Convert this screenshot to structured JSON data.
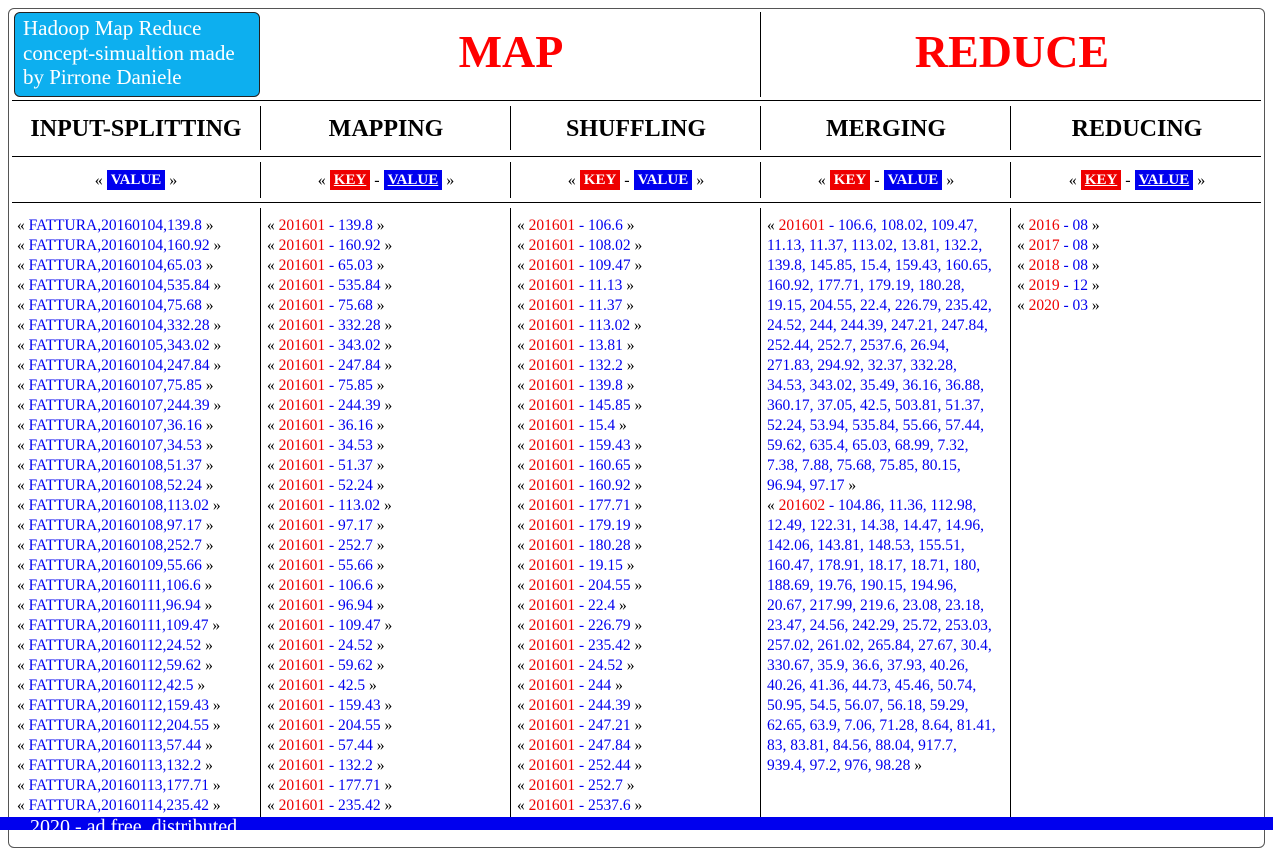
{
  "brand": "Hadoop Map Reduce concept-simualtion made by Pirrone Daniele",
  "titles": {
    "map": "MAP",
    "reduce": "REDUCE"
  },
  "columns": {
    "input": "INPUT-SPLITTING",
    "mapping": "MAPPING",
    "shuffling": "SHUFFLING",
    "merging": "MERGING",
    "reducing": "REDUCING"
  },
  "labels": {
    "key": "KEY",
    "value": "VALUE",
    "sep": " - "
  },
  "colors": {
    "brand_bg": "#0dafef",
    "title": "#ff0000",
    "key": "#ee0000",
    "value": "#0000ee",
    "footer": "#0000ee"
  },
  "input_items": [
    "FATTURA,20160104,139.8",
    "FATTURA,20160104,160.92",
    "FATTURA,20160104,65.03",
    "FATTURA,20160104,535.84",
    "FATTURA,20160104,75.68",
    "FATTURA,20160104,332.28",
    "FATTURA,20160105,343.02",
    "FATTURA,20160104,247.84",
    "FATTURA,20160107,75.85",
    "FATTURA,20160107,244.39",
    "FATTURA,20160107,36.16",
    "FATTURA,20160107,34.53",
    "FATTURA,20160108,51.37",
    "FATTURA,20160108,52.24",
    "FATTURA,20160108,113.02",
    "FATTURA,20160108,97.17",
    "FATTURA,20160108,252.7",
    "FATTURA,20160109,55.66",
    "FATTURA,20160111,106.6",
    "FATTURA,20160111,96.94",
    "FATTURA,20160111,109.47",
    "FATTURA,20160112,24.52",
    "FATTURA,20160112,59.62",
    "FATTURA,20160112,42.5",
    "FATTURA,20160112,159.43",
    "FATTURA,20160112,204.55",
    "FATTURA,20160113,57.44",
    "FATTURA,20160113,132.2",
    "FATTURA,20160113,177.71",
    "FATTURA,20160114,235.42"
  ],
  "mapping_items": [
    {
      "k": "201601",
      "v": "139.8"
    },
    {
      "k": "201601",
      "v": "160.92"
    },
    {
      "k": "201601",
      "v": "65.03"
    },
    {
      "k": "201601",
      "v": "535.84"
    },
    {
      "k": "201601",
      "v": "75.68"
    },
    {
      "k": "201601",
      "v": "332.28"
    },
    {
      "k": "201601",
      "v": "343.02"
    },
    {
      "k": "201601",
      "v": "247.84"
    },
    {
      "k": "201601",
      "v": "75.85"
    },
    {
      "k": "201601",
      "v": "244.39"
    },
    {
      "k": "201601",
      "v": "36.16"
    },
    {
      "k": "201601",
      "v": "34.53"
    },
    {
      "k": "201601",
      "v": "51.37"
    },
    {
      "k": "201601",
      "v": "52.24"
    },
    {
      "k": "201601",
      "v": "113.02"
    },
    {
      "k": "201601",
      "v": "97.17"
    },
    {
      "k": "201601",
      "v": "252.7"
    },
    {
      "k": "201601",
      "v": "55.66"
    },
    {
      "k": "201601",
      "v": "106.6"
    },
    {
      "k": "201601",
      "v": "96.94"
    },
    {
      "k": "201601",
      "v": "109.47"
    },
    {
      "k": "201601",
      "v": "24.52"
    },
    {
      "k": "201601",
      "v": "59.62"
    },
    {
      "k": "201601",
      "v": "42.5"
    },
    {
      "k": "201601",
      "v": "159.43"
    },
    {
      "k": "201601",
      "v": "204.55"
    },
    {
      "k": "201601",
      "v": "57.44"
    },
    {
      "k": "201601",
      "v": "132.2"
    },
    {
      "k": "201601",
      "v": "177.71"
    },
    {
      "k": "201601",
      "v": "235.42"
    }
  ],
  "shuffling_items": [
    {
      "k": "201601",
      "v": "106.6"
    },
    {
      "k": "201601",
      "v": "108.02"
    },
    {
      "k": "201601",
      "v": "109.47"
    },
    {
      "k": "201601",
      "v": "11.13"
    },
    {
      "k": "201601",
      "v": "11.37"
    },
    {
      "k": "201601",
      "v": "113.02"
    },
    {
      "k": "201601",
      "v": "13.81"
    },
    {
      "k": "201601",
      "v": "132.2"
    },
    {
      "k": "201601",
      "v": "139.8"
    },
    {
      "k": "201601",
      "v": "145.85"
    },
    {
      "k": "201601",
      "v": "15.4"
    },
    {
      "k": "201601",
      "v": "159.43"
    },
    {
      "k": "201601",
      "v": "160.65"
    },
    {
      "k": "201601",
      "v": "160.92"
    },
    {
      "k": "201601",
      "v": "177.71"
    },
    {
      "k": "201601",
      "v": "179.19"
    },
    {
      "k": "201601",
      "v": "180.28"
    },
    {
      "k": "201601",
      "v": "19.15"
    },
    {
      "k": "201601",
      "v": "204.55"
    },
    {
      "k": "201601",
      "v": "22.4"
    },
    {
      "k": "201601",
      "v": "226.79"
    },
    {
      "k": "201601",
      "v": "235.42"
    },
    {
      "k": "201601",
      "v": "24.52"
    },
    {
      "k": "201601",
      "v": "244"
    },
    {
      "k": "201601",
      "v": "244.39"
    },
    {
      "k": "201601",
      "v": "247.21"
    },
    {
      "k": "201601",
      "v": "247.84"
    },
    {
      "k": "201601",
      "v": "252.44"
    },
    {
      "k": "201601",
      "v": "252.7"
    },
    {
      "k": "201601",
      "v": "2537.6"
    }
  ],
  "merging_items": [
    {
      "k": "201601",
      "v": "106.6, 108.02, 109.47, 11.13, 11.37, 113.02, 13.81, 132.2, 139.8, 145.85, 15.4, 159.43, 160.65, 160.92, 177.71, 179.19, 180.28, 19.15, 204.55, 22.4, 226.79, 235.42, 24.52, 244, 244.39, 247.21, 247.84, 252.44, 252.7, 2537.6, 26.94, 271.83, 294.92, 32.37, 332.28, 34.53, 343.02, 35.49, 36.16, 36.88, 360.17, 37.05, 42.5, 503.81, 51.37, 52.24, 53.94, 535.84, 55.66, 57.44, 59.62, 635.4, 65.03, 68.99, 7.32, 7.38, 7.88, 75.68, 75.85, 80.15, 96.94, 97.17"
    },
    {
      "k": "201602",
      "v": "104.86, 11.36, 112.98, 12.49, 122.31, 14.38, 14.47, 14.96, 142.06, 143.81, 148.53, 155.51, 160.47, 178.91, 18.17, 18.71, 180, 188.69, 19.76, 190.15, 194.96, 20.67, 217.99, 219.6, 23.08, 23.18, 23.47, 24.56, 242.29, 25.72, 253.03, 257.02, 261.02, 265.84, 27.67, 30.4, 330.67, 35.9, 36.6, 37.93, 40.26, 40.26, 41.36, 44.73, 45.46, 50.74, 50.95, 54.5, 56.07, 56.18, 59.29, 62.65, 63.9, 7.06, 71.28, 8.64, 81.41, 83, 83.81, 84.56, 88.04, 917.7, 939.4, 97.2, 976, 98.28"
    }
  ],
  "reducing_items": [
    {
      "k": "2016",
      "v": "08"
    },
    {
      "k": "2017",
      "v": "08"
    },
    {
      "k": "2018",
      "v": "08"
    },
    {
      "k": "2019",
      "v": "12"
    },
    {
      "k": "2020",
      "v": "03"
    }
  ],
  "footer": "2020 - ad free, distributed"
}
